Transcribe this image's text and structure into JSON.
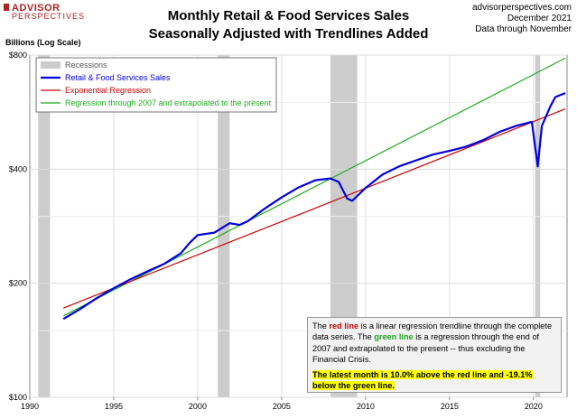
{
  "logo": {
    "line1": "ADVISOR",
    "line2": "PERSPECTIVES"
  },
  "header": {
    "title_line1": "Monthly Retail & Food Services Sales",
    "title_line2": "Seasonally Adjusted with Trendlines Added",
    "source": "advisorperspectives.com",
    "date": "December 2021",
    "data_through": "Data through November"
  },
  "colors": {
    "actual": "#0000dd",
    "exponential": "#cc0000",
    "regression_2007": "#22aa22",
    "recession": "#cccccc"
  },
  "note": {
    "p1_a": "The ",
    "p1_red": "red line",
    "p1_b": " is a  linear regression trendline  through the complete data series. The ",
    "p1_green": "green line",
    "p1_c": " is a regression through the end of 2007 and extrapolated to the present -- thus excluding the Financial Crisis.",
    "p2": "The latest month is 10.0%  above the red line and -19.1% below the green line."
  },
  "chart_data": {
    "type": "line",
    "ylabel": "Billions (Log Scale)",
    "yscale": "log",
    "ylim": [
      100,
      800
    ],
    "xlim": [
      1990,
      2022
    ],
    "y_ticks": [
      {
        "value": 100,
        "label": "$100"
      },
      {
        "value": 200,
        "label": "$200"
      },
      {
        "value": 400,
        "label": "$400"
      },
      {
        "value": 800,
        "label": "$800"
      }
    ],
    "x_ticks": [
      {
        "value": 1990,
        "label": "1990"
      },
      {
        "value": 1995,
        "label": "1995"
      },
      {
        "value": 2000,
        "label": "2000"
      },
      {
        "value": 2005,
        "label": "2005"
      },
      {
        "value": 2010,
        "label": "2010"
      },
      {
        "value": 2015,
        "label": "2015"
      },
      {
        "value": 2020,
        "label": "2020"
      }
    ],
    "grid": true,
    "legend_position": "top-left",
    "recessions": [
      {
        "start": 1990.5,
        "end": 1991.2
      },
      {
        "start": 2001.2,
        "end": 2001.9
      },
      {
        "start": 2007.9,
        "end": 2009.5
      },
      {
        "start": 2020.1,
        "end": 2020.4
      }
    ],
    "legend": [
      {
        "label": "Recessions",
        "color": "#cccccc",
        "kind": "band"
      },
      {
        "label": "Retail & Food Services Sales",
        "color": "#0000dd",
        "kind": "line"
      },
      {
        "label": "Exponential Regression",
        "color": "#cc0000",
        "kind": "line"
      },
      {
        "label": "Regression through 2007 and extrapolated to the present",
        "color": "#22aa22",
        "kind": "line"
      }
    ],
    "series": [
      {
        "name": "Retail & Food Services Sales",
        "color": "#0000dd",
        "x": [
          1992.0,
          1993.0,
          1994.0,
          1995.0,
          1996.0,
          1997.0,
          1998.0,
          1999.0,
          1999.5,
          2000.0,
          2001.0,
          2001.9,
          2002.5,
          2003.0,
          2004.0,
          2005.0,
          2006.0,
          2007.0,
          2007.9,
          2008.4,
          2008.9,
          2009.2,
          2009.5,
          2010.0,
          2011.0,
          2012.0,
          2013.0,
          2014.0,
          2015.0,
          2016.0,
          2017.0,
          2018.0,
          2019.0,
          2019.9,
          2020.25,
          2020.5,
          2021.0,
          2021.3,
          2021.7,
          2021.9
        ],
        "values": [
          161,
          171,
          183,
          194,
          205,
          215,
          225,
          240,
          255,
          268,
          272,
          288,
          285,
          292,
          315,
          337,
          358,
          374,
          378,
          370,
          335,
          330,
          340,
          357,
          387,
          407,
          422,
          437,
          447,
          459,
          477,
          502,
          521,
          533,
          407,
          520,
          585,
          620,
          630,
          635
        ]
      },
      {
        "name": "Exponential Regression",
        "color": "#cc0000",
        "x": [
          1992.0,
          2021.9
        ],
        "values": [
          172,
          577
        ]
      },
      {
        "name": "Regression through 2007 and extrapolated to the present",
        "color": "#22aa22",
        "x": [
          1992.0,
          2021.9
        ],
        "values": [
          164,
          785
        ]
      }
    ]
  }
}
